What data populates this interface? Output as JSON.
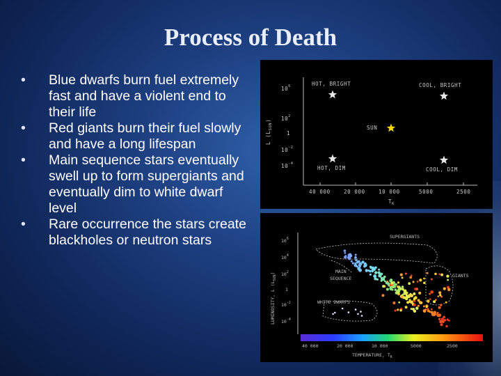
{
  "slide": {
    "title": "Process of Death",
    "bullets": [
      "Blue dwarfs burn fuel extremely fast and have a violent end to their life",
      "Red giants burn their fuel slowly and have a long lifespan",
      "Main sequence stars eventually swell up to form supergiants and eventually dim to white dwarf level",
      "Rare occurrence the stars create blackholes or neutron stars"
    ],
    "bullet_symbol": "•"
  },
  "diagram_top": {
    "y_axis_label": "L (L",
    "y_axis_sub": "SUN",
    "y_axis_close": ")",
    "y_ticks": [
      "10",
      "10",
      "1",
      "10",
      "10"
    ],
    "y_tick_exps": [
      "6",
      "2",
      "-2",
      "-4"
    ],
    "x_axis_label": "T",
    "x_axis_sub": "K",
    "x_ticks": [
      "40 000",
      "20 000",
      "10 000",
      "5000",
      "2500"
    ],
    "labels": {
      "hot_bright": "HOT, BRIGHT",
      "cool_bright": "COOL, BRIGHT",
      "sun": "SUN",
      "hot_dim": "HOT, DIM",
      "cool_dim": "COOL, DIM"
    },
    "colors": {
      "star_white": "#e8e8e8",
      "sun": "#f5d800"
    }
  },
  "diagram_bottom": {
    "y_axis_label": "LUMINOSITY, L (L",
    "y_axis_sub": "SUN",
    "y_axis_close": ")",
    "y_ticks": [
      "10",
      "10",
      "1",
      "10",
      "10"
    ],
    "y_tick_exps": [
      "6",
      "4",
      "2",
      "-2",
      "-4"
    ],
    "x_axis_label": "TEMPERATURE, T",
    "x_axis_sub": "K",
    "x_ticks": [
      "40 000",
      "20 000",
      "10 000",
      "5000",
      "2500"
    ],
    "labels": {
      "supergiants": "SUPERGIANTS",
      "main_sequence_1": "MAIN",
      "main_sequence_2": "SEQUENCE",
      "giants": "GIANTS",
      "white_dwarfs": "WHITE DWARFS"
    }
  }
}
